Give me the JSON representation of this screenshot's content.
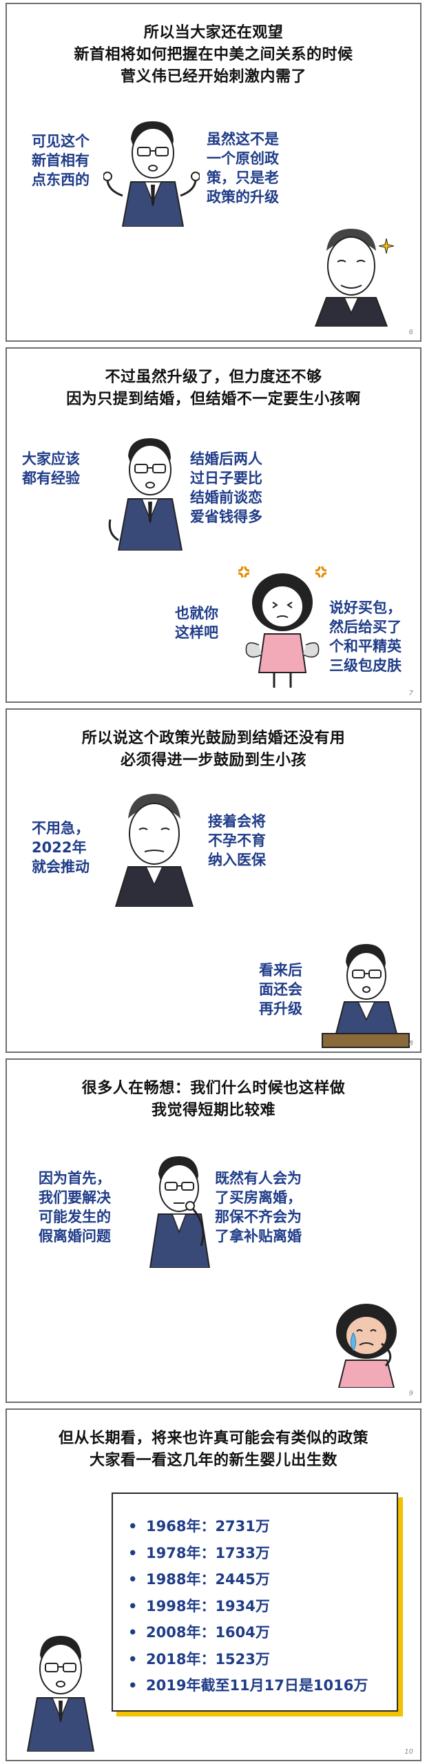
{
  "panels": [
    {
      "page_number": "6",
      "title_lines": [
        "所以当大家还在观望",
        "新首相将如何把握在中美之间关系的时候",
        "菅义伟已经开始刺激内需了"
      ],
      "bubbles": [
        {
          "lines": [
            "可见这个",
            "新首相有",
            "点东西的"
          ]
        },
        {
          "lines": [
            "虽然这不是",
            "一个原创政",
            "策，只是老",
            "政策的升级"
          ]
        }
      ]
    },
    {
      "page_number": "7",
      "title_lines": [
        "不过虽然升级了，但力度还不够",
        "因为只提到结婚，但结婚不一定要生小孩啊"
      ],
      "bubbles": [
        {
          "lines": [
            "大家应该",
            "都有经验"
          ]
        },
        {
          "lines": [
            "结婚后两人",
            "过日子要比",
            "结婚前谈恋",
            "爱省钱得多"
          ]
        },
        {
          "lines": [
            "也就你",
            "这样吧"
          ]
        },
        {
          "lines": [
            "说好买包，",
            "然后给买了",
            "个和平精英",
            "三级包皮肤"
          ]
        }
      ]
    },
    {
      "page_number": "8",
      "title_lines": [
        "所以说这个政策光鼓励到结婚还没有用",
        "必须得进一步鼓励到生小孩"
      ],
      "bubbles": [
        {
          "lines": [
            "不用急，",
            "2022年",
            "就会推动"
          ]
        },
        {
          "lines": [
            "接着会将",
            "不孕不育",
            "纳入医保"
          ]
        },
        {
          "lines": [
            "看来后",
            "面还会",
            "再升级"
          ]
        }
      ]
    },
    {
      "page_number": "9",
      "title_lines": [
        "很多人在畅想：我们什么时候也这样做",
        "我觉得短期比较难"
      ],
      "bubbles": [
        {
          "lines": [
            "因为首先，",
            "我们要解决",
            "可能发生的",
            "假离婚问题"
          ]
        },
        {
          "lines": [
            "既然有人会为",
            "了买房离婚，",
            "那保不齐会为",
            "了拿补贴离婚"
          ]
        }
      ]
    },
    {
      "page_number": "10",
      "title_lines": [
        "但从长期看，将来也许真可能会有类似的政策",
        "大家看一看这几年的新生婴儿出生数"
      ],
      "bullet": "•",
      "births": [
        "1968年：2731万",
        "1978年：1733万",
        "1988年：2445万",
        "1998年：1934万",
        "2008年：1604万",
        "2018年：1523万",
        "2019年截至11月17日是1016万"
      ]
    }
  ],
  "colors": {
    "caption_text": "#1f3c88",
    "title_text": "#111111",
    "panel_border": "#6e6e6e",
    "box_shadow": "#f2c200",
    "crying_face": "#f2c8b0",
    "pink_dress": "#f2a9b8"
  },
  "icons": [
    "glasses-man-figure",
    "old-man-figure",
    "girl-figure",
    "sparkle-icon",
    "anger-mark-icon",
    "tear-icon"
  ]
}
